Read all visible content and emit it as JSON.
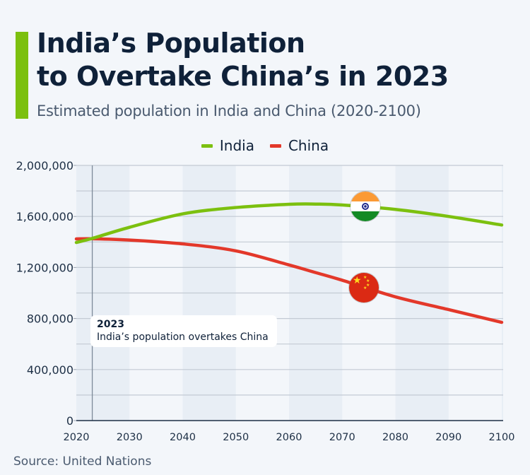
{
  "header": {
    "title": "India’s Population\nto Overtake China’s in 2023",
    "subtitle": "Estimated population in India and China (2020-2100)",
    "accent_color": "#7cc00f"
  },
  "legend": [
    {
      "label": "India",
      "color": "#7cc00f"
    },
    {
      "label": "China",
      "color": "#e3382a"
    }
  ],
  "annotation": {
    "year": "2023",
    "text": "India’s population overtakes China"
  },
  "flags": {
    "india": "india-flag-icon",
    "china": "china-flag-icon"
  },
  "footer": {
    "source": "Source: United Nations"
  },
  "chart_data": {
    "type": "line",
    "title": "India’s Population to Overtake China’s in 2023",
    "subtitle": "Estimated population in India and China (2020-2100)",
    "xlabel": "",
    "ylabel": "",
    "xlim": [
      2020,
      2100
    ],
    "ylim": [
      0,
      2000000
    ],
    "x_ticks": [
      "2020",
      "2030",
      "2040",
      "2050",
      "2060",
      "2070",
      "2080",
      "2090",
      "2100"
    ],
    "y_ticks": [
      "0",
      "400,000",
      "800,000",
      "1,200,000",
      "1,600,000",
      "2,000,000"
    ],
    "y_tick_values": [
      0,
      400000,
      800000,
      1200000,
      1600000,
      2000000
    ],
    "grid": true,
    "minor_gridlines_every": 200000,
    "legend_position": "top-center",
    "x": [
      2020,
      2023,
      2030,
      2040,
      2050,
      2060,
      2065,
      2070,
      2080,
      2090,
      2100
    ],
    "series": [
      {
        "name": "India",
        "color": "#7cc00f",
        "values": [
          1396000,
          1428000,
          1515000,
          1620000,
          1670000,
          1695000,
          1697000,
          1690000,
          1655000,
          1600000,
          1533000
        ]
      },
      {
        "name": "China",
        "color": "#e3382a",
        "values": [
          1424000,
          1425000,
          1415000,
          1385000,
          1330000,
          1220000,
          1160000,
          1100000,
          970000,
          870000,
          770000
        ]
      }
    ],
    "annotations": [
      {
        "x": 2023,
        "label": "2023",
        "text": "India’s population overtakes China"
      }
    ],
    "markers": [
      {
        "series": "India",
        "x": 2074,
        "icon": "india-flag"
      },
      {
        "series": "China",
        "x": 2074,
        "icon": "china-flag"
      }
    ],
    "source": "Source: United Nations"
  }
}
